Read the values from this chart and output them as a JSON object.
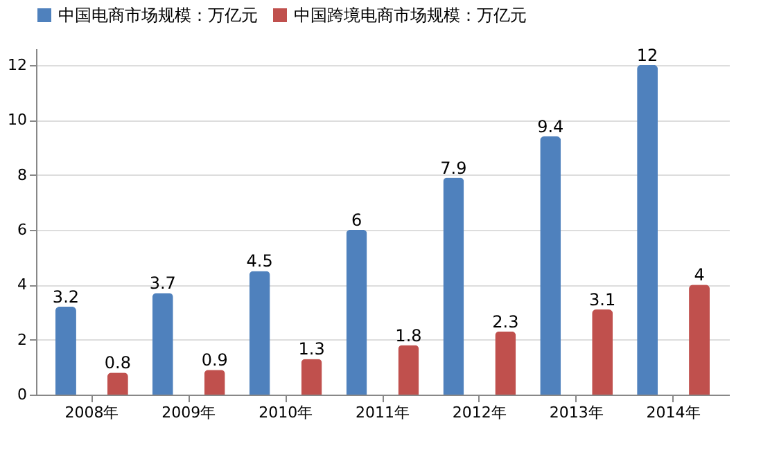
{
  "chart_data": {
    "type": "bar",
    "categories": [
      "2008年",
      "2009年",
      "2010年",
      "2011年",
      "2012年",
      "2013年",
      "2014年"
    ],
    "series": [
      {
        "name": "中国电商市场规模：万亿元",
        "color": "#4f81bd",
        "values": [
          3.2,
          3.7,
          4.5,
          6,
          7.9,
          9.4,
          12
        ]
      },
      {
        "name": "中国跨境电商市场规模：万亿元",
        "color": "#c0504d",
        "values": [
          0.8,
          0.9,
          1.3,
          1.8,
          2.3,
          3.1,
          4
        ]
      }
    ],
    "ylim": [
      0,
      12.6
    ],
    "yticks": [
      0,
      2,
      4,
      6,
      8,
      10,
      12
    ],
    "grid": "y",
    "legend": "top",
    "data_labels": true
  }
}
